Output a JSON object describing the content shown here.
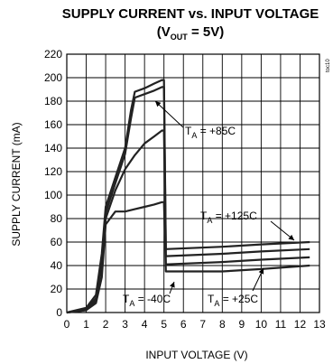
{
  "chart_data": {
    "type": "line",
    "title_main": "SUPPLY CURRENT  vs. INPUT VOLTAGE",
    "title_sub_open": "(V",
    "title_sub_sub": "OUT",
    "title_sub_close": " = 5V)",
    "xlabel": "INPUT VOLTAGE (V)",
    "ylabel": "SUPPLY CURRENT (mA)",
    "xlim": [
      0,
      13
    ],
    "ylim": [
      0,
      220
    ],
    "x_ticks": [
      "0",
      "1",
      "2",
      "3",
      "4",
      "5",
      "6",
      "7",
      "8",
      "9",
      "10",
      "11",
      "12",
      "13"
    ],
    "y_ticks": [
      "0",
      "20",
      "40",
      "60",
      "80",
      "100",
      "120",
      "140",
      "160",
      "180",
      "200",
      "220"
    ],
    "grid": true,
    "side_label": "toc10",
    "series": [
      {
        "label_main": "T",
        "label_sub": "A",
        "label_rest": " = -40C",
        "x": [
          0,
          1,
          1.5,
          1.8,
          2,
          2.5,
          3,
          3.5,
          4,
          4.5,
          4.9,
          5,
          5.1,
          8,
          10,
          12.5
        ],
        "y": [
          0,
          2,
          8,
          30,
          75,
          86,
          86,
          88,
          90,
          92,
          94,
          94,
          35,
          35,
          37,
          40
        ]
      },
      {
        "label_main": "T",
        "label_sub": "A",
        "label_rest": " = +25C",
        "x": [
          0,
          1,
          1.5,
          1.8,
          2,
          2.5,
          3,
          3.5,
          4,
          4.5,
          4.9,
          5,
          5.1,
          8,
          10,
          12.5
        ],
        "y": [
          0,
          2,
          10,
          40,
          80,
          104,
          122,
          134,
          144,
          150,
          155,
          155,
          41,
          43,
          45,
          47
        ]
      },
      {
        "label_main": "T",
        "label_sub": "A",
        "label_rest": " = +85C",
        "x": [
          0,
          1,
          1.5,
          1.8,
          2,
          2.5,
          3,
          3.3,
          3.5,
          4,
          4.5,
          4.9,
          5,
          5.1,
          8,
          10,
          12.5
        ],
        "y": [
          0,
          3,
          12,
          45,
          85,
          110,
          135,
          165,
          183,
          186,
          189,
          192,
          192,
          48,
          50,
          52,
          54
        ]
      },
      {
        "label_main": "T",
        "label_sub": "A",
        "label_rest": " = +125C",
        "x": [
          0,
          1,
          1.5,
          1.8,
          2,
          2.5,
          3,
          3.3,
          3.5,
          4,
          4.5,
          4.9,
          5,
          5.1,
          8,
          10,
          12.5
        ],
        "y": [
          0,
          4,
          15,
          50,
          90,
          115,
          140,
          172,
          188,
          191,
          195,
          198,
          198,
          54,
          56,
          58,
          60
        ]
      }
    ]
  }
}
